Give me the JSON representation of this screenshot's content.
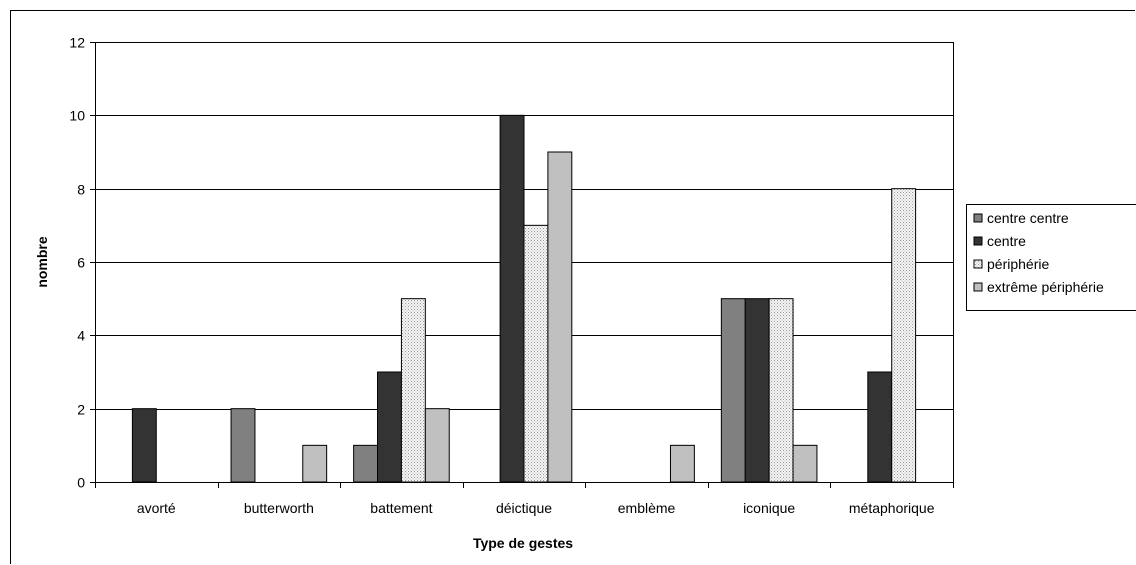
{
  "chart_data": {
    "type": "bar",
    "xlabel": "Type de gestes",
    "ylabel": "nombre",
    "ylim": [
      0,
      12
    ],
    "yticks": [
      0,
      2,
      4,
      6,
      8,
      10,
      12
    ],
    "grid": true,
    "legend_position": "right",
    "categories": [
      "avorté",
      "butterworth",
      "battement",
      "déictique",
      "emblème",
      "iconique",
      "métaphorique"
    ],
    "series": [
      {
        "name": "centre centre",
        "color": "#808080",
        "values": [
          0,
          2,
          1,
          0,
          0,
          5,
          0
        ]
      },
      {
        "name": "centre",
        "color": "#333333",
        "values": [
          2,
          0,
          3,
          10,
          0,
          5,
          3
        ]
      },
      {
        "name": "périphérie",
        "color": "#e6e6e6",
        "pattern": "dots",
        "values": [
          0,
          0,
          5,
          7,
          0,
          5,
          8
        ]
      },
      {
        "name": "extrême périphérie",
        "color": "#c0c0c0",
        "values": [
          0,
          1,
          2,
          9,
          1,
          1,
          0
        ]
      }
    ]
  }
}
